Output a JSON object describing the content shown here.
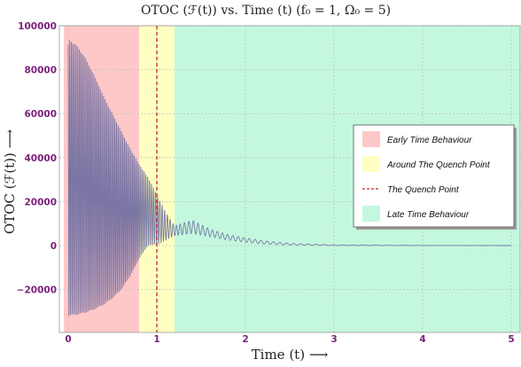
{
  "chart_data": {
    "type": "line",
    "title": "OTOC (ℱ(t)) vs. Time (t) (f₀ = 1, Ω₀ = 5)",
    "xlabel": "Time (t)  ⟶",
    "ylabel": "OTOC (ℱ(t))  ⟶",
    "xlim": [
      -0.05,
      5.1
    ],
    "ylim": [
      -38000,
      100000
    ],
    "x_ticks": [
      0,
      1,
      2,
      3,
      4,
      5
    ],
    "y_ticks": [
      -20000,
      0,
      20000,
      40000,
      60000,
      80000,
      100000
    ],
    "x_tick_labels": [
      "0",
      "1",
      "2",
      "3",
      "4",
      "5"
    ],
    "y_tick_labels": [
      "−20000",
      "0",
      "20000",
      "40000",
      "60000",
      "80000",
      "100000"
    ],
    "grid": true,
    "legend_position": "right",
    "regions": [
      {
        "name": "Early Time Behaviour",
        "x_start": -0.05,
        "x_end": 0.8,
        "color": "#ffc8c8"
      },
      {
        "name": "Around The Quench Point",
        "x_start": 0.8,
        "x_end": 1.2,
        "color": "#ffffc2"
      },
      {
        "name": "Late Time Behaviour",
        "x_start": 1.2,
        "x_end": 5.1,
        "color": "#c4f8de"
      }
    ],
    "quench_line": {
      "name": "The Quench Point",
      "x": 1.0,
      "color": "#cc2222"
    },
    "legend": [
      {
        "label": "Early Time Behaviour",
        "kind": "patch",
        "color": "#ffc8c8"
      },
      {
        "label": "Around The Quench Point",
        "kind": "patch",
        "color": "#ffffc2"
      },
      {
        "label": "The Quench Point",
        "kind": "dashed",
        "color": "#cc2222"
      },
      {
        "label": "Late Time Behaviour",
        "kind": "patch",
        "color": "#c4f8de"
      }
    ],
    "series": [
      {
        "color": "#6a6aa0",
        "description_points": {
          "x": [
            0.0,
            0.1,
            0.2,
            0.3,
            0.4,
            0.5,
            0.6,
            0.7,
            0.8,
            0.9,
            1.0,
            1.1,
            1.2,
            1.4,
            1.6,
            1.8,
            2.0,
            2.2,
            2.5,
            3.0,
            4.0,
            5.0
          ],
          "upper": [
            94000,
            91000,
            85000,
            77000,
            68000,
            60000,
            52000,
            44000,
            37000,
            31000,
            23000,
            15000,
            9000,
            11500,
            7500,
            5000,
            3500,
            2200,
            1000,
            300,
            50,
            0
          ],
          "lower": [
            -32000,
            -31500,
            -30500,
            -29000,
            -27000,
            -24000,
            -20000,
            -14000,
            -6000,
            0,
            500,
            2500,
            4500,
            5500,
            4000,
            2500,
            1500,
            700,
            200,
            0,
            0,
            0
          ]
        }
      }
    ]
  }
}
